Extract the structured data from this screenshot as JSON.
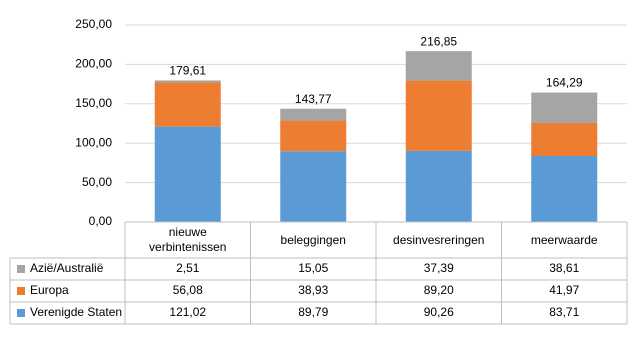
{
  "chart_data": {
    "type": "stacked_bar",
    "categories": [
      "nieuwe verbintenissen",
      "beleggingen",
      "desinvesreringen",
      "meerwaarde"
    ],
    "series": [
      {
        "name": "Verenigde Staten",
        "color": "#5b9bd5",
        "values": [
          121.02,
          89.79,
          90.26,
          83.71
        ],
        "value_labels": [
          "121,02",
          "89,79",
          "90,26",
          "83,71"
        ]
      },
      {
        "name": "Europa",
        "color": "#ed7d31",
        "values": [
          56.08,
          38.93,
          89.2,
          41.97
        ],
        "value_labels": [
          "56,08",
          "38,93",
          "89,20",
          "41,97"
        ]
      },
      {
        "name": "Azië/Australië",
        "color": "#a5a5a5",
        "values": [
          2.51,
          15.05,
          37.39,
          38.61
        ],
        "value_labels": [
          "2,51",
          "15,05",
          "37,39",
          "38,61"
        ]
      }
    ],
    "totals": [
      179.61,
      143.77,
      216.85,
      164.29
    ],
    "total_labels": [
      "179,61",
      "143,77",
      "216,85",
      "164,29"
    ],
    "ylim": [
      0,
      250
    ],
    "yticks": [
      {
        "value": 0,
        "label": "0,00"
      },
      {
        "value": 50,
        "label": "50,00"
      },
      {
        "value": 100,
        "label": "100,00"
      },
      {
        "value": 150,
        "label": "150,00"
      },
      {
        "value": 200,
        "label": "200,00"
      },
      {
        "value": 250,
        "label": "250,00"
      }
    ],
    "grid": true
  }
}
